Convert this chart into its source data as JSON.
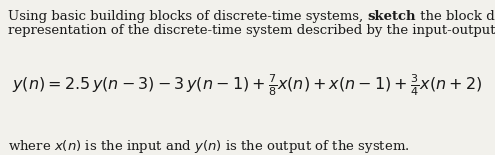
{
  "bg_color": "#f2f1ec",
  "text_color": "#1a1a1a",
  "font_size_body": 9.5,
  "font_size_eq": 11.5,
  "font_size_footer": 9.5,
  "line1_pre": "Using basic building blocks of discrete-time systems, ",
  "line1_bold": "sketch",
  "line1_post": " the block diagram",
  "line2": "representation of the discrete-time system described by the input-output relation,",
  "equation": "$y(n) = 2.5\\,y(n-3) - 3\\,y(n-1) + \\frac{7}{8}x(n) + x(n-1) + \\frac{3}{4}x(n+2)$",
  "footer": "where $x(n)$ is the input and $y(n)$ is the output of the system."
}
